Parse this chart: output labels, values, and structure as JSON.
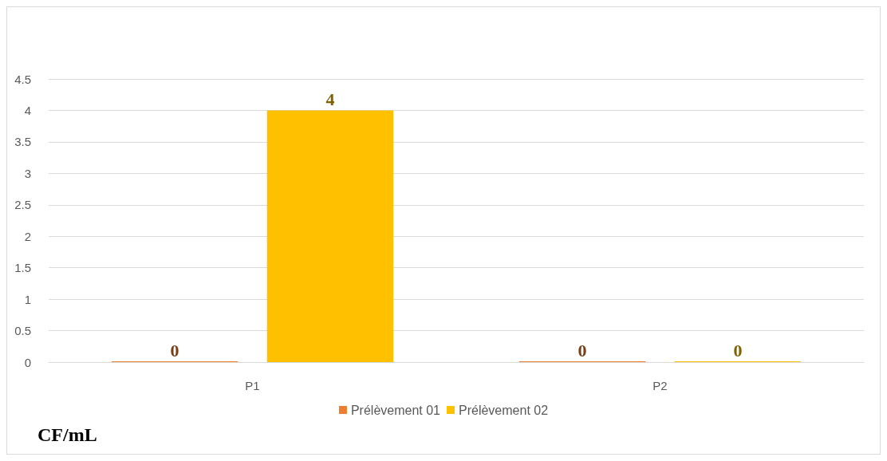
{
  "chart_data": {
    "type": "bar",
    "annotations": [
      "CF/mL"
    ],
    "categories": [
      "P1",
      "P2"
    ],
    "series": [
      {
        "name": "Prélèvement 01",
        "color": "#ed7d31",
        "values": [
          0,
          0
        ]
      },
      {
        "name": "Prélèvement 02",
        "color": "#ffc000",
        "values": [
          4,
          0
        ]
      }
    ],
    "ylim": [
      0,
      4.5
    ],
    "yticks": [
      0,
      0.5,
      1,
      1.5,
      2,
      2.5,
      3,
      3.5,
      4,
      4.5
    ],
    "grid": "y",
    "legend": "bottom",
    "data_labels": true
  }
}
